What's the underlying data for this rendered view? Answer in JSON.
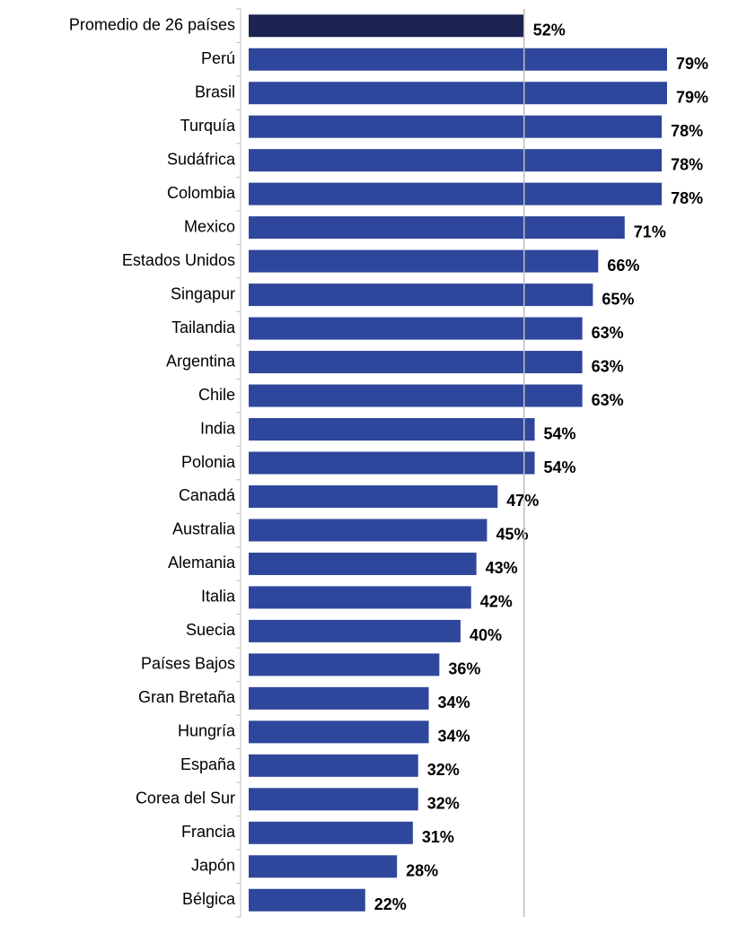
{
  "chart_data": {
    "type": "bar",
    "orientation": "horizontal",
    "categories": [
      "Promedio de 26 países",
      "Perú",
      "Brasil",
      "Turquía",
      "Sudáfrica",
      "Colombia",
      "Mexico",
      "Estados Unidos",
      "Singapur",
      "Tailandia",
      "Argentina",
      "Chile",
      "India",
      "Polonia",
      "Canadá",
      "Australia",
      "Alemania",
      "Italia",
      "Suecia",
      "Países Bajos",
      "Gran Bretaña",
      "Hungría",
      "España",
      "Corea del Sur",
      "Francia",
      "Japón",
      "Bélgica"
    ],
    "values": [
      52,
      79,
      79,
      78,
      78,
      78,
      71,
      66,
      65,
      63,
      63,
      63,
      54,
      54,
      47,
      45,
      43,
      42,
      40,
      36,
      34,
      34,
      32,
      32,
      31,
      28,
      22
    ],
    "value_labels": [
      "52%",
      "79%",
      "79%",
      "78%",
      "78%",
      "78%",
      "71%",
      "66%",
      "65%",
      "63%",
      "63%",
      "63%",
      "54%",
      "54%",
      "47%",
      "45%",
      "43%",
      "42%",
      "40%",
      "36%",
      "34%",
      "34%",
      "32%",
      "32%",
      "31%",
      "28%",
      "22%"
    ],
    "colors": [
      "#1c2552",
      "#2e479c",
      "#2e479c",
      "#2e479c",
      "#2e479c",
      "#2e479c",
      "#2e479c",
      "#2e479c",
      "#2e479c",
      "#2e479c",
      "#2e479c",
      "#2e479c",
      "#2e479c",
      "#2e479c",
      "#2e479c",
      "#2e479c",
      "#2e479c",
      "#2e479c",
      "#2e479c",
      "#2e479c",
      "#2e479c",
      "#2e479c",
      "#2e479c",
      "#2e479c",
      "#2e479c",
      "#2e479c",
      "#2e479c"
    ]
  }
}
